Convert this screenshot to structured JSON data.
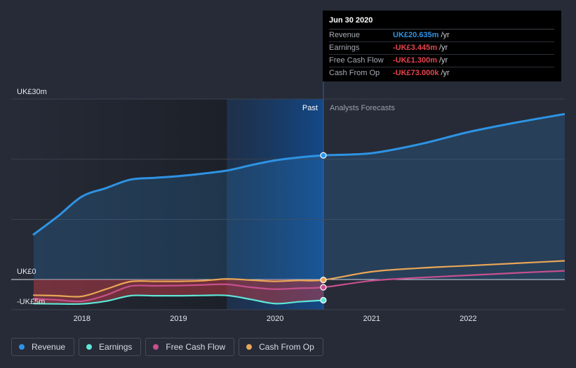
{
  "chart_data": {
    "type": "area",
    "x_range": [
      2017.5,
      2023.0
    ],
    "ylim": [
      -5,
      30
    ],
    "y_unit": "UK£m",
    "x_tick_labels": [
      "2018",
      "2019",
      "2020",
      "2021",
      "2022"
    ],
    "x_tick_values": [
      2018,
      2019,
      2020,
      2021,
      2022
    ],
    "y_tick_labels": [
      "UK£30m",
      "UK£0",
      "-UK£5m"
    ],
    "y_tick_values": [
      30,
      0,
      -5
    ],
    "past_label": "Past",
    "forecast_label": "Analysts Forecasts",
    "past_start": 2019.5,
    "divider_x": 2020.5,
    "series": [
      {
        "name": "Revenue",
        "color": "#2e93e3",
        "points": [
          [
            2017.5,
            7.5
          ],
          [
            2017.75,
            10.5
          ],
          [
            2018.0,
            13.8
          ],
          [
            2018.25,
            15.2
          ],
          [
            2018.5,
            16.6
          ],
          [
            2018.75,
            16.9
          ],
          [
            2019.0,
            17.2
          ],
          [
            2019.25,
            17.6
          ],
          [
            2019.5,
            18.1
          ],
          [
            2019.75,
            19.0
          ],
          [
            2020.0,
            19.8
          ],
          [
            2020.25,
            20.3
          ],
          [
            2020.5,
            20.635
          ]
        ],
        "forecast": [
          [
            2020.5,
            20.635
          ],
          [
            2021.0,
            21.0
          ],
          [
            2021.5,
            22.5
          ],
          [
            2022.0,
            24.5
          ],
          [
            2022.5,
            26.1
          ],
          [
            2023.0,
            27.5
          ]
        ]
      },
      {
        "name": "Earnings",
        "color": "#5ee6d6",
        "points": [
          [
            2017.5,
            -4.0
          ],
          [
            2017.75,
            -4.05
          ],
          [
            2018.0,
            -4.05
          ],
          [
            2018.25,
            -3.6
          ],
          [
            2018.5,
            -2.7
          ],
          [
            2018.75,
            -2.7
          ],
          [
            2019.0,
            -2.7
          ],
          [
            2019.25,
            -2.65
          ],
          [
            2019.5,
            -2.65
          ],
          [
            2019.75,
            -3.3
          ],
          [
            2020.0,
            -4.0
          ],
          [
            2020.25,
            -3.7
          ],
          [
            2020.5,
            -3.445
          ]
        ],
        "forecast": []
      },
      {
        "name": "Free Cash Flow",
        "color": "#c6508e",
        "points": [
          [
            2017.5,
            -3.2
          ],
          [
            2017.75,
            -3.4
          ],
          [
            2018.0,
            -3.6
          ],
          [
            2018.25,
            -2.6
          ],
          [
            2018.5,
            -1.1
          ],
          [
            2018.75,
            -1.05
          ],
          [
            2019.0,
            -1.0
          ],
          [
            2019.25,
            -0.9
          ],
          [
            2019.5,
            -0.8
          ],
          [
            2019.75,
            -1.3
          ],
          [
            2020.0,
            -1.6
          ],
          [
            2020.25,
            -1.45
          ],
          [
            2020.5,
            -1.3
          ]
        ],
        "forecast": [
          [
            2020.5,
            -1.3
          ],
          [
            2021.0,
            -0.2
          ],
          [
            2021.5,
            0.3
          ],
          [
            2022.0,
            0.7
          ],
          [
            2022.5,
            1.1
          ],
          [
            2023.0,
            1.45
          ]
        ]
      },
      {
        "name": "Cash From Op",
        "color": "#e8a657",
        "points": [
          [
            2017.5,
            -2.6
          ],
          [
            2017.75,
            -2.7
          ],
          [
            2018.0,
            -2.8
          ],
          [
            2018.25,
            -1.6
          ],
          [
            2018.5,
            -0.35
          ],
          [
            2018.75,
            -0.3
          ],
          [
            2019.0,
            -0.3
          ],
          [
            2019.25,
            -0.2
          ],
          [
            2019.5,
            0.1
          ],
          [
            2019.75,
            -0.1
          ],
          [
            2020.0,
            -0.3
          ],
          [
            2020.25,
            -0.15
          ],
          [
            2020.5,
            -0.073
          ]
        ],
        "forecast": [
          [
            2020.5,
            -0.073
          ],
          [
            2021.0,
            1.3
          ],
          [
            2021.5,
            1.9
          ],
          [
            2022.0,
            2.3
          ],
          [
            2022.5,
            2.7
          ],
          [
            2023.0,
            3.1
          ]
        ]
      }
    ]
  },
  "tooltip": {
    "date": "Jun 30 2020",
    "rows": [
      {
        "label": "Revenue",
        "value": "UK£20.635m",
        "unit": "/yr",
        "color": "#2e93e3"
      },
      {
        "label": "Earnings",
        "value": "-UK£3.445m",
        "unit": "/yr",
        "color": "#e8434e"
      },
      {
        "label": "Free Cash Flow",
        "value": "-UK£1.300m",
        "unit": "/yr",
        "color": "#e8434e"
      },
      {
        "label": "Cash From Op",
        "value": "-UK£73.000k",
        "unit": "/yr",
        "color": "#e8434e"
      }
    ]
  },
  "legend": [
    {
      "label": "Revenue",
      "color": "#2e93e3"
    },
    {
      "label": "Earnings",
      "color": "#5ee6d6"
    },
    {
      "label": "Free Cash Flow",
      "color": "#c6508e"
    },
    {
      "label": "Cash From Op",
      "color": "#e8a657"
    }
  ]
}
